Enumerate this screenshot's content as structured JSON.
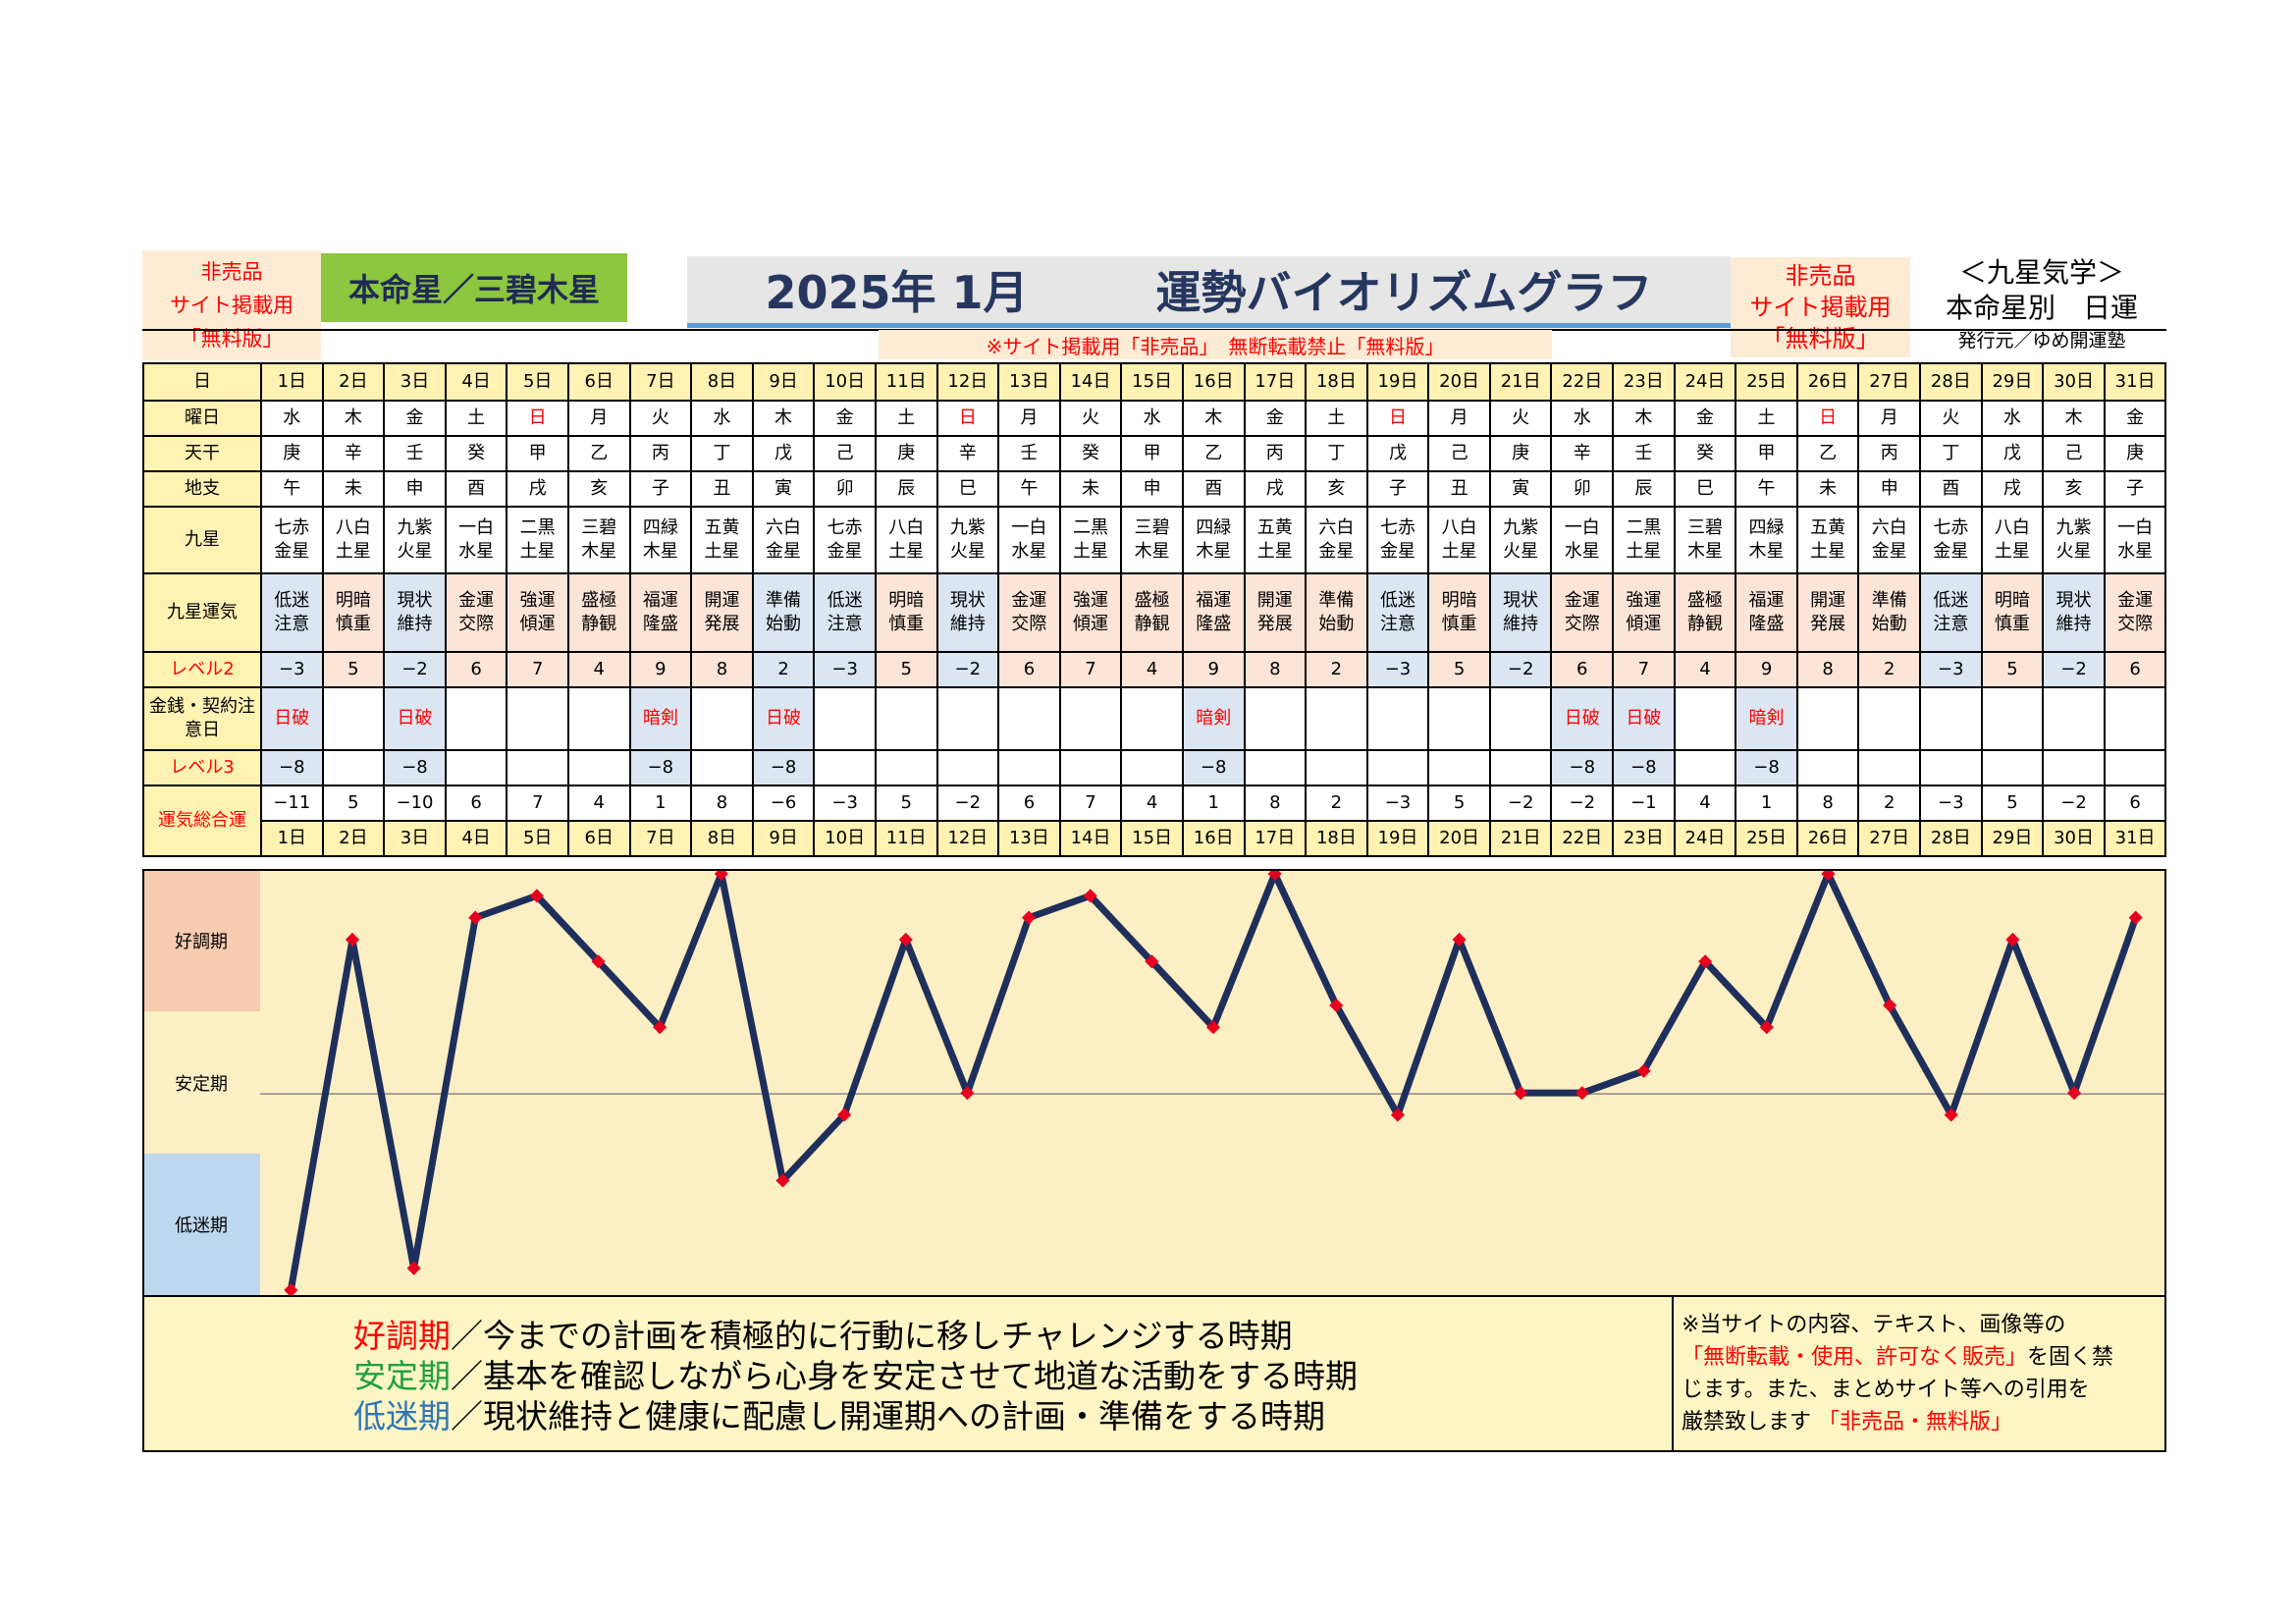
{
  "header": {
    "left_badge": [
      "非売品",
      "サイト掲載用",
      "「無料版」"
    ],
    "honmeisei": "本命星／三碧木星",
    "title_date": "2025年 1月",
    "title_main": "運勢バイオリズムグラフ",
    "right_badge": [
      "非売品",
      "サイト掲載用",
      "「無料版」"
    ],
    "kyusei_line1": "＜九星気学＞",
    "kyusei_line2": "本命星別　日運",
    "publisher": "発行元／ゆめ開運塾",
    "notice": "※サイト掲載用「非売品」　無断転載禁止「無料版」"
  },
  "row_labels": {
    "day": "日",
    "weekday": "曜日",
    "tenkan": "天干",
    "chishi": "地支",
    "kyusei": "九星",
    "kyusei_unki": "九星運気",
    "level2": "レベル2",
    "money_warning": "金銭・契約注意日",
    "level3": "レベル3",
    "total": "運気総合運"
  },
  "days": [
    "1日",
    "2日",
    "3日",
    "4日",
    "5日",
    "6日",
    "7日",
    "8日",
    "9日",
    "10日",
    "11日",
    "12日",
    "13日",
    "14日",
    "15日",
    "16日",
    "17日",
    "18日",
    "19日",
    "20日",
    "21日",
    "22日",
    "23日",
    "24日",
    "25日",
    "26日",
    "27日",
    "28日",
    "29日",
    "30日",
    "31日"
  ],
  "weekdays": [
    "水",
    "木",
    "金",
    "土",
    "日",
    "月",
    "火",
    "水",
    "木",
    "金",
    "土",
    "日",
    "月",
    "火",
    "水",
    "木",
    "金",
    "土",
    "日",
    "月",
    "火",
    "水",
    "木",
    "金",
    "土",
    "日",
    "月",
    "火",
    "水",
    "木",
    "金"
  ],
  "tenkan": [
    "庚",
    "辛",
    "壬",
    "癸",
    "甲",
    "乙",
    "丙",
    "丁",
    "戊",
    "己",
    "庚",
    "辛",
    "壬",
    "癸",
    "甲",
    "乙",
    "丙",
    "丁",
    "戊",
    "己",
    "庚",
    "辛",
    "壬",
    "癸",
    "甲",
    "乙",
    "丙",
    "丁",
    "戊",
    "己",
    "庚"
  ],
  "chishi": [
    "午",
    "未",
    "申",
    "酉",
    "戌",
    "亥",
    "子",
    "丑",
    "寅",
    "卯",
    "辰",
    "巳",
    "午",
    "未",
    "申",
    "酉",
    "戌",
    "亥",
    "子",
    "丑",
    "寅",
    "卯",
    "辰",
    "巳",
    "午",
    "未",
    "申",
    "酉",
    "戌",
    "亥",
    "子"
  ],
  "kyusei": [
    [
      "七赤",
      "金星"
    ],
    [
      "八白",
      "土星"
    ],
    [
      "九紫",
      "火星"
    ],
    [
      "一白",
      "水星"
    ],
    [
      "二黒",
      "土星"
    ],
    [
      "三碧",
      "木星"
    ],
    [
      "四緑",
      "木星"
    ],
    [
      "五黄",
      "土星"
    ],
    [
      "六白",
      "金星"
    ],
    [
      "七赤",
      "金星"
    ],
    [
      "八白",
      "土星"
    ],
    [
      "九紫",
      "火星"
    ],
    [
      "一白",
      "水星"
    ],
    [
      "二黒",
      "土星"
    ],
    [
      "三碧",
      "木星"
    ],
    [
      "四緑",
      "木星"
    ],
    [
      "五黄",
      "土星"
    ],
    [
      "六白",
      "金星"
    ],
    [
      "七赤",
      "金星"
    ],
    [
      "八白",
      "土星"
    ],
    [
      "九紫",
      "火星"
    ],
    [
      "一白",
      "水星"
    ],
    [
      "二黒",
      "土星"
    ],
    [
      "三碧",
      "木星"
    ],
    [
      "四緑",
      "木星"
    ],
    [
      "五黄",
      "土星"
    ],
    [
      "六白",
      "金星"
    ],
    [
      "七赤",
      "金星"
    ],
    [
      "八白",
      "土星"
    ],
    [
      "九紫",
      "火星"
    ],
    [
      "一白",
      "水星"
    ]
  ],
  "kyusei_unki": [
    [
      "低迷",
      "注意"
    ],
    [
      "明暗",
      "慎重"
    ],
    [
      "現状",
      "維持"
    ],
    [
      "金運",
      "交際"
    ],
    [
      "強運",
      "傾運"
    ],
    [
      "盛極",
      "静観"
    ],
    [
      "福運",
      "隆盛"
    ],
    [
      "開運",
      "発展"
    ],
    [
      "準備",
      "始動"
    ],
    [
      "低迷",
      "注意"
    ],
    [
      "明暗",
      "慎重"
    ],
    [
      "現状",
      "維持"
    ],
    [
      "金運",
      "交際"
    ],
    [
      "強運",
      "傾運"
    ],
    [
      "盛極",
      "静観"
    ],
    [
      "福運",
      "隆盛"
    ],
    [
      "開運",
      "発展"
    ],
    [
      "準備",
      "始動"
    ],
    [
      "低迷",
      "注意"
    ],
    [
      "明暗",
      "慎重"
    ],
    [
      "現状",
      "維持"
    ],
    [
      "金運",
      "交際"
    ],
    [
      "強運",
      "傾運"
    ],
    [
      "盛極",
      "静観"
    ],
    [
      "福運",
      "隆盛"
    ],
    [
      "開運",
      "発展"
    ],
    [
      "準備",
      "始動"
    ],
    [
      "低迷",
      "注意"
    ],
    [
      "明暗",
      "慎重"
    ],
    [
      "現状",
      "維持"
    ],
    [
      "金運",
      "交際"
    ]
  ],
  "level2": [
    "−3",
    "5",
    "−2",
    "6",
    "7",
    "4",
    "9",
    "8",
    "2",
    "−3",
    "5",
    "−2",
    "6",
    "7",
    "4",
    "9",
    "8",
    "2",
    "−3",
    "5",
    "−2",
    "6",
    "7",
    "4",
    "9",
    "8",
    "2",
    "−3",
    "5",
    "−2",
    "6"
  ],
  "money_warning": [
    "日破",
    "",
    "日破",
    "",
    "",
    "",
    "暗剣",
    "",
    "日破",
    "",
    "",
    "",
    "",
    "",
    "",
    "暗剣",
    "",
    "",
    "",
    "",
    "",
    "日破",
    "日破",
    "",
    "暗剣",
    "",
    "",
    "",
    "",
    "",
    ""
  ],
  "level3": [
    "−8",
    "",
    "−8",
    "",
    "",
    "",
    "−8",
    "",
    "−8",
    "",
    "",
    "",
    "",
    "",
    "",
    "−8",
    "",
    "",
    "",
    "",
    "",
    "−8",
    "−8",
    "",
    "−8",
    "",
    "",
    "",
    "",
    "",
    ""
  ],
  "total": [
    "−11",
    "5",
    "−10",
    "6",
    "7",
    "4",
    "1",
    "8",
    "−6",
    "−3",
    "5",
    "−2",
    "6",
    "7",
    "4",
    "1",
    "8",
    "2",
    "−3",
    "5",
    "−2",
    "−2",
    "−1",
    "4",
    "1",
    "8",
    "2",
    "−3",
    "5",
    "−2",
    "6"
  ],
  "zones": {
    "good": "好調期",
    "stable": "安定期",
    "low": "低迷期"
  },
  "chart_data": {
    "type": "line",
    "x": [
      1,
      2,
      3,
      4,
      5,
      6,
      7,
      8,
      9,
      10,
      11,
      12,
      13,
      14,
      15,
      16,
      17,
      18,
      19,
      20,
      21,
      22,
      23,
      24,
      25,
      26,
      27,
      28,
      29,
      30,
      31
    ],
    "series": [
      {
        "values": [
          -11,
          5,
          -10,
          6,
          7,
          4,
          1,
          8,
          -6,
          -3,
          5,
          -2,
          6,
          7,
          4,
          1,
          8,
          2,
          -3,
          5,
          -2,
          -2,
          -1,
          4,
          1,
          8,
          2,
          -3,
          5,
          -2,
          6
        ]
      }
    ],
    "ylim": [
      -11,
      8
    ],
    "line_color": "#1f2f5c",
    "marker_color": "#e8001f"
  },
  "footer": {
    "legend": [
      {
        "term": "好調期",
        "text": "／今までの計画を積極的に行動に移しチャレンジする時期",
        "color": "#ff0000"
      },
      {
        "term": "安定期",
        "text": "／基本を確認しながら心身を安定させて地道な活動をする時期",
        "color": "#1fa040"
      },
      {
        "term": "低迷期",
        "text": "／現状維持と健康に配慮し開運期への計画・準備をする時期",
        "color": "#2e75b6"
      }
    ],
    "note_1": "※当サイトの内容、テキスト、画像等の",
    "note_2_red": "「無断転載・使用、許可なく販売」",
    "note_2_tail": "を固く禁",
    "note_3": "じます。また、まとめサイト等への引用を",
    "note_4": "厳禁致します",
    "note_4_red": "「非売品・無料版」"
  }
}
